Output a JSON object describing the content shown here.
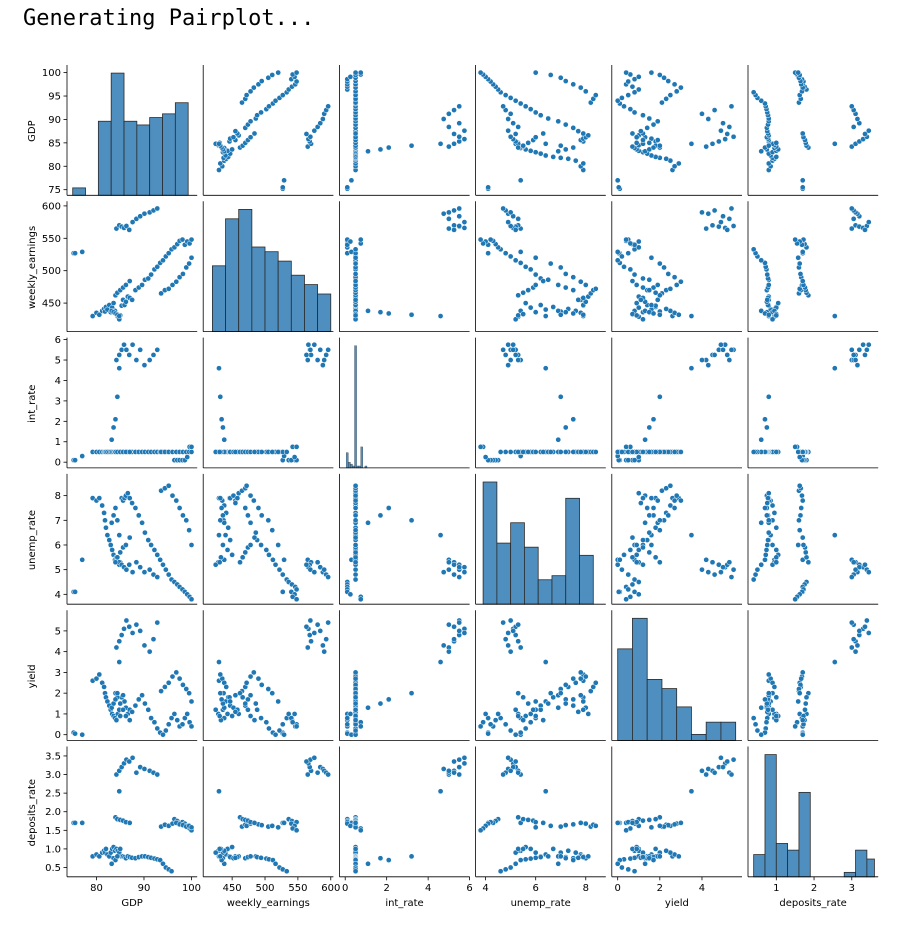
{
  "output": {
    "status_text": "Generating Pairplot..."
  },
  "chart_data": {
    "type": "scatter",
    "kind": "pairplot",
    "diagonal": "histogram",
    "marker_color": "#1f77b4",
    "variables": [
      "GDP",
      "weekly_earnings",
      "int_rate",
      "unemp_rate",
      "yield",
      "deposits_rate"
    ],
    "axis_ranges": {
      "GDP": [
        73.8,
        101.2
      ],
      "weekly_earnings": [
        406,
        604
      ],
      "int_rate": [
        -0.28,
        6.0
      ],
      "unemp_rate": [
        3.6,
        8.8
      ],
      "yield": [
        -0.28,
        5.9
      ],
      "deposits_rate": [
        0.25,
        3.7
      ]
    },
    "ticks": {
      "GDP": [
        75,
        80,
        85,
        90,
        95,
        100
      ],
      "weekly_earnings": [
        450,
        500,
        550,
        600
      ],
      "int_rate": [
        0,
        1,
        2,
        3,
        4,
        5,
        6
      ],
      "unemp_rate": [
        4,
        5,
        6,
        7,
        8
      ],
      "yield": [
        0,
        1,
        2,
        3,
        4,
        5
      ],
      "deposits_rate": [
        0.5,
        1.0,
        1.5,
        2.0,
        2.5,
        3.0,
        3.5
      ]
    },
    "x_ticks": {
      "GDP": [
        80,
        90,
        100
      ],
      "weekly_earnings": [
        450,
        500,
        550,
        600
      ],
      "int_rate": [
        0,
        2,
        4,
        6
      ],
      "unemp_rate": [
        4,
        6,
        8
      ],
      "yield": [
        0,
        2,
        4
      ],
      "deposits_rate": [
        1,
        2,
        3
      ]
    },
    "data": {
      "GDP": [
        75.2,
        75.5,
        77,
        79.2,
        80.0,
        80.6,
        81.2,
        81.6,
        81.8,
        82.0,
        82.3,
        82.7,
        83.0,
        83.3,
        83.6,
        83.9,
        84.2,
        84.5,
        84.8,
        85.0,
        85.3,
        85.6,
        85.9,
        86.2,
        86.6,
        87.0,
        87.5,
        88.2,
        88.9,
        89.6,
        90.2,
        90.9,
        91.5,
        92.2,
        92.8,
        93.4,
        94.0,
        94.6,
        95.2,
        95.8,
        96.4,
        97.0,
        97.5,
        98.1,
        98.6,
        99.1,
        99.6,
        100.0,
        84.2,
        84.8,
        85.3,
        85.8,
        86.3,
        86.9,
        87.6,
        88.4,
        89.2,
        90.1,
        91.2,
        92.0,
        92.8,
        93.6,
        94.4,
        95.2,
        96.0,
        96.8,
        97.5,
        98.2,
        98.9,
        99.5,
        100.0,
        84.0,
        84.4,
        85.0,
        85.6,
        86.2,
        87.0,
        83.2,
        83.6,
        84.0,
        84.4,
        84.8
      ],
      "weekly_earnings": [
        527,
        527,
        529,
        430,
        435,
        432,
        438,
        441,
        437,
        444,
        440,
        447,
        436,
        443,
        450,
        438,
        433,
        429,
        425,
        431,
        446,
        455,
        447,
        452,
        460,
        458,
        455,
        470,
        474,
        478,
        486,
        488,
        494,
        502,
        506,
        512,
        516,
        522,
        527,
        533,
        536,
        541,
        546,
        548,
        540,
        545,
        542,
        548,
        565,
        570,
        568,
        566,
        569,
        563,
        575,
        580,
        584,
        588,
        590,
        593,
        596,
        465,
        470,
        472,
        478,
        483,
        490,
        495,
        505,
        511,
        520,
        462,
        466,
        470,
        474,
        478,
        484,
        438,
        436,
        434,
        432,
        430
      ],
      "int_rate": [
        0.1,
        0.1,
        0.3,
        0.5,
        0.5,
        0.5,
        0.5,
        0.5,
        0.5,
        0.5,
        0.5,
        0.5,
        0.5,
        0.5,
        0.5,
        0.5,
        0.5,
        0.5,
        0.5,
        0.5,
        0.5,
        0.5,
        0.5,
        0.5,
        0.5,
        0.5,
        0.5,
        0.5,
        0.5,
        0.5,
        0.5,
        0.5,
        0.5,
        0.5,
        0.5,
        0.5,
        0.5,
        0.5,
        0.5,
        0.5,
        0.1,
        0.1,
        0.1,
        0.1,
        0.1,
        0.25,
        0.75,
        0.75,
        5.0,
        5.25,
        5.5,
        5.75,
        5.5,
        5.25,
        5.75,
        5.0,
        5.5,
        4.75,
        5.0,
        5.25,
        5.5,
        0.5,
        0.5,
        0.5,
        0.5,
        0.5,
        0.5,
        0.5,
        0.5,
        0.5,
        0.5,
        0.5,
        0.5,
        0.5,
        0.5,
        0.5,
        0.5,
        1.1,
        1.7,
        2.1,
        3.2,
        4.6
      ],
      "unemp_rate": [
        4.1,
        4.1,
        5.4,
        7.9,
        7.8,
        7.9,
        7.6,
        7.3,
        7.0,
        6.7,
        6.4,
        6.2,
        6.0,
        5.8,
        5.6,
        5.4,
        5.5,
        5.3,
        5.2,
        5.3,
        7.9,
        7.8,
        7.9,
        8.0,
        8.1,
        7.9,
        7.7,
        7.5,
        7.2,
        6.9,
        6.5,
        6.2,
        6.0,
        5.8,
        5.6,
        5.4,
        5.2,
        5.0,
        4.8,
        4.6,
        4.5,
        4.4,
        4.3,
        4.2,
        4.1,
        4.0,
        3.9,
        3.8,
        5.4,
        5.3,
        5.2,
        5.1,
        5.0,
        5.2,
        4.9,
        5.3,
        5.1,
        4.9,
        5.0,
        4.8,
        4.7,
        8.2,
        8.3,
        8.4,
        8.0,
        7.8,
        7.5,
        7.2,
        7.0,
        6.6,
        6.0,
        5.3,
        5.5,
        5.7,
        5.9,
        6.0,
        6.3,
        6.9,
        7.2,
        7.5,
        7.0,
        6.4
      ],
      "yield": [
        0.1,
        0.05,
        0.0,
        2.6,
        2.7,
        2.9,
        2.5,
        2.3,
        2.0,
        1.8,
        1.6,
        1.4,
        1.2,
        1.0,
        0.9,
        0.8,
        0.7,
        1.0,
        1.2,
        0.9,
        1.8,
        1.9,
        1.6,
        1.3,
        1.0,
        1.2,
        1.1,
        1.4,
        1.7,
        1.9,
        1.5,
        1.2,
        0.8,
        0.6,
        0.3,
        0.1,
        0.0,
        0.2,
        0.5,
        0.8,
        1.0,
        0.7,
        0.4,
        0.5,
        0.8,
        1.0,
        0.6,
        0.4,
        4.2,
        4.5,
        4.8,
        5.1,
        5.5,
        5.2,
        4.9,
        5.3,
        5.0,
        4.3,
        4.0,
        4.6,
        5.4,
        2.1,
        2.3,
        2.5,
        2.8,
        3.0,
        2.7,
        2.4,
        2.2,
        2.0,
        1.6,
        2.0,
        1.8,
        1.5,
        1.2,
        0.9,
        0.7,
        1.3,
        1.5,
        1.7,
        2.0,
        3.5
      ],
      "deposits_rate": [
        1.7,
        1.7,
        1.7,
        0.8,
        0.85,
        0.8,
        0.9,
        0.95,
        0.9,
        1.0,
        0.85,
        0.8,
        0.9,
        1.0,
        1.05,
        0.95,
        1.0,
        0.95,
        0.9,
        1.0,
        0.8,
        0.8,
        0.78,
        0.75,
        0.8,
        0.78,
        0.76,
        0.75,
        0.78,
        0.8,
        0.8,
        0.78,
        0.76,
        0.74,
        0.72,
        0.7,
        0.6,
        0.5,
        0.45,
        0.4,
        1.8,
        1.75,
        1.7,
        1.72,
        1.68,
        1.62,
        1.55,
        1.5,
        3.0,
        3.1,
        3.2,
        3.3,
        3.4,
        3.35,
        3.45,
        3.05,
        3.2,
        3.15,
        3.1,
        3.05,
        3.0,
        1.6,
        1.65,
        1.62,
        1.68,
        1.7,
        1.66,
        1.64,
        1.6,
        1.62,
        1.58,
        1.85,
        1.8,
        1.78,
        1.76,
        1.72,
        1.7,
        0.6,
        0.75,
        0.7,
        0.8,
        2.55
      ]
    },
    "histograms": {
      "GDP": {
        "edges": [
          75,
          77.7,
          80.4,
          83.1,
          85.8,
          88.5,
          91.2,
          93.9,
          96.6,
          99.3,
          101
        ],
        "counts": [
          2,
          0,
          20,
          33,
          20,
          19,
          21,
          22,
          25,
          0
        ]
      },
      "weekly_earnings": {
        "edges": [
          420,
          440,
          460,
          480,
          500,
          520,
          540,
          560,
          580,
          600
        ],
        "counts": [
          14,
          24,
          26,
          18,
          17,
          15,
          12,
          10,
          8
        ]
      },
      "int_rate": {
        "edges": [
          0.05,
          0.15,
          0.25,
          0.35,
          0.45,
          0.55,
          0.65,
          0.75,
          0.85,
          0.95,
          1.05
        ],
        "counts": [
          8,
          3,
          2,
          1,
          64,
          1,
          1,
          11,
          0,
          1
        ]
      },
      "unemp_rate": {
        "edges": [
          3.9,
          4.45,
          5.0,
          5.55,
          6.1,
          6.65,
          7.2,
          7.75,
          8.3,
          8.6
        ],
        "counts": [
          30,
          15,
          20,
          14,
          6,
          7,
          26,
          12,
          0
        ]
      },
      "yield": {
        "edges": [
          0,
          0.7,
          1.4,
          2.1,
          2.8,
          3.5,
          4.2,
          4.9,
          5.6
        ],
        "counts": [
          30,
          40,
          20,
          17,
          11,
          2,
          6,
          6
        ]
      },
      "deposits_rate": {
        "edges": [
          0.4,
          0.7,
          1.0,
          1.3,
          1.6,
          1.9,
          2.2,
          2.5,
          2.8,
          3.1,
          3.4,
          3.6
        ],
        "counts": [
          10,
          55,
          15,
          12,
          38,
          0,
          0,
          0,
          2,
          12,
          8
        ]
      }
    }
  }
}
